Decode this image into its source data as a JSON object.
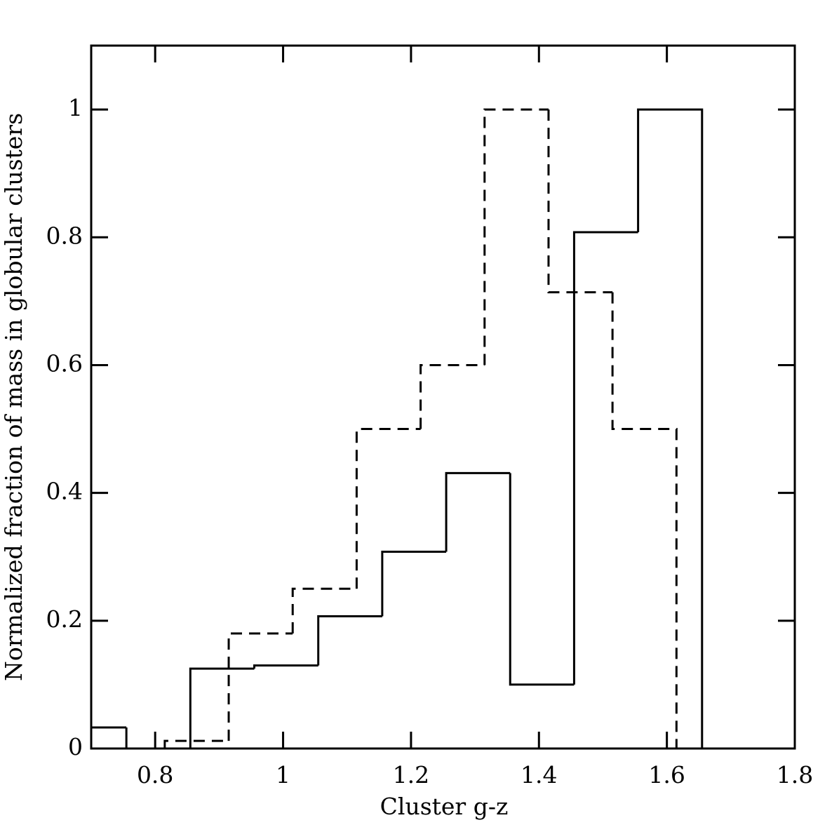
{
  "chart_data": {
    "type": "histogram",
    "xlabel": "Cluster g-z",
    "ylabel": "Normalized fraction of mass in globular clusters",
    "xlim": [
      0.7,
      1.8
    ],
    "ylim": [
      0,
      1.1
    ],
    "xticks": [
      0.8,
      1,
      1.2,
      1.4,
      1.6,
      1.8
    ],
    "yticks": [
      0,
      0.2,
      0.4,
      0.6,
      0.8,
      1
    ],
    "series": [
      {
        "color": "#000000",
        "linestyle": "solid",
        "bins": [
          0.655,
          0.755,
          0.855,
          0.955,
          1.055,
          1.155,
          1.255,
          1.355,
          1.455,
          1.555,
          1.655
        ],
        "values": [
          0.033,
          0,
          0.125,
          0.13,
          0.207,
          0.308,
          0.431,
          0.1,
          0.808,
          1.0
        ]
      },
      {
        "color": "#000000",
        "linestyle": "dashed",
        "bins": [
          0.815,
          0.915,
          1.015,
          1.115,
          1.215,
          1.315,
          1.415,
          1.515,
          1.615
        ],
        "values": [
          0.012,
          0.18,
          0.25,
          0.5,
          0.6,
          1.0,
          0.714,
          0.5
        ]
      }
    ]
  }
}
